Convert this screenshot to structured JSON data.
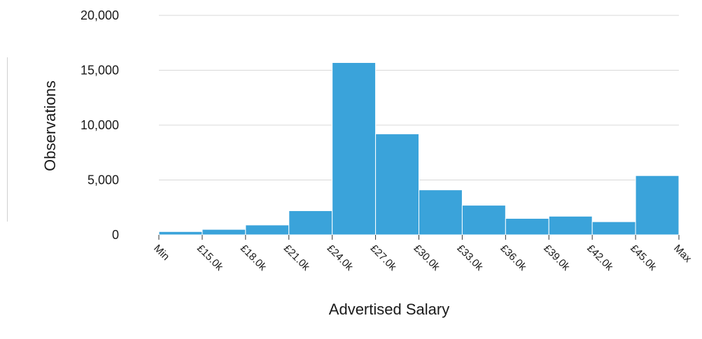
{
  "chart_data": {
    "type": "bar",
    "xlabel": "Advertised Salary",
    "ylabel": "Observations",
    "ylim": [
      0,
      20000
    ],
    "y_ticks": [
      "0",
      "5,000",
      "10,000",
      "15,000",
      "20,000"
    ],
    "y_tick_values": [
      0,
      5000,
      10000,
      15000,
      20000
    ],
    "x_ticks": [
      "Min",
      "£15.0k",
      "£18.0k",
      "£21.0k",
      "£24.0k",
      "£27.0k",
      "£30.0k",
      "£33.0k",
      "£36.0k",
      "£39.0k",
      "£42.0k",
      "£45.0k",
      "Max"
    ],
    "bins": [
      {
        "from": "Min",
        "to": "£15.0k",
        "value": 300
      },
      {
        "from": "£15.0k",
        "to": "£18.0k",
        "value": 500
      },
      {
        "from": "£18.0k",
        "to": "£21.0k",
        "value": 900
      },
      {
        "from": "£21.0k",
        "to": "£24.0k",
        "value": 2200
      },
      {
        "from": "£24.0k",
        "to": "£27.0k",
        "value": 15700
      },
      {
        "from": "£27.0k",
        "to": "£30.0k",
        "value": 9200
      },
      {
        "from": "£30.0k",
        "to": "£33.0k",
        "value": 4100
      },
      {
        "from": "£33.0k",
        "to": "£36.0k",
        "value": 2700
      },
      {
        "from": "£36.0k",
        "to": "£39.0k",
        "value": 1500
      },
      {
        "from": "£39.0k",
        "to": "£42.0k",
        "value": 1700
      },
      {
        "from": "£42.0k",
        "to": "£45.0k",
        "value": 1200
      },
      {
        "from": "£45.0k",
        "to": "Max",
        "value": 5400
      }
    ],
    "grid": true,
    "legend": "none",
    "bar_color": "#3aa3da"
  }
}
